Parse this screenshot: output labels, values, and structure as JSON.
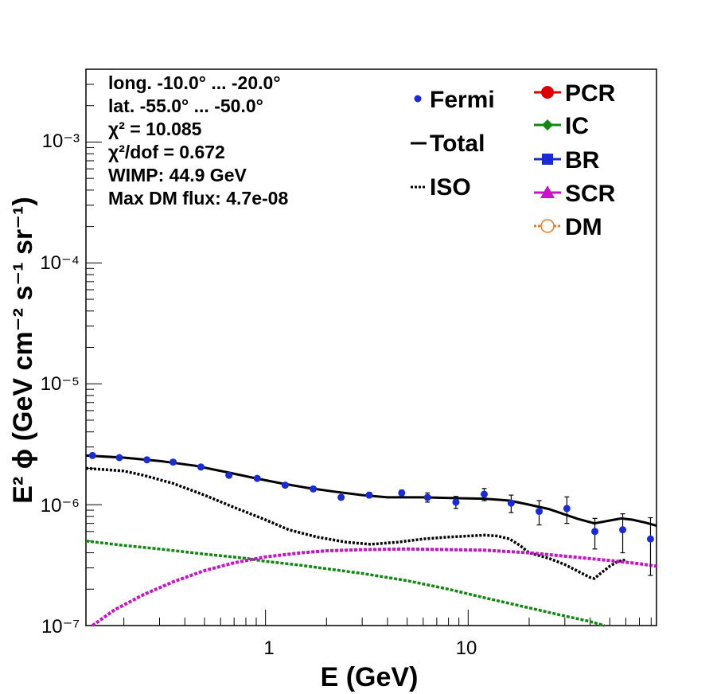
{
  "chart_data": {
    "type": "line",
    "xscale": "log",
    "yscale": "log",
    "xlim": [
      0.13,
      85
    ],
    "ylim": [
      1e-07,
      0.004
    ],
    "grid": false,
    "xlabel": "E (GeV)",
    "ylabel": "E² ϕ (GeV cm⁻² s⁻¹ sr⁻¹)",
    "x_tick_labels": [
      "1",
      "10"
    ],
    "y_tick_labels": [
      "10⁻⁷",
      "10⁻⁶",
      "10⁻⁵",
      "10⁻⁴",
      "10⁻³"
    ],
    "info": {
      "longitude": "long. -10.0° ... -20.0°",
      "latitude": "lat. -55.0° ... -50.0°",
      "chi2": "χ² = 10.085",
      "chi2_dof": "χ²/dof = 0.672",
      "wimp": "WIMP: 44.9 GeV",
      "max_dm_flux": "Max DM flux: 4.7e-08"
    },
    "legend_left": [
      "Fermi",
      "Total",
      "ISO"
    ],
    "legend_right": [
      "PCR",
      "IC",
      "BR",
      "SCR",
      "DM"
    ],
    "legend_placement": "top-right",
    "colors": {
      "Fermi": "#1a2bd6",
      "Total": "#000000",
      "ISO": "#000000",
      "PCR": "#dd0000",
      "IC": "#118811",
      "BR": "#1a2bd6",
      "SCR": "#cc11cc",
      "DM": "#ee7722"
    },
    "fermi": {
      "x": [
        0.14,
        0.19,
        0.26,
        0.35,
        0.48,
        0.66,
        0.91,
        1.25,
        1.72,
        2.36,
        3.25,
        4.7,
        6.3,
        8.7,
        12.0,
        16.3,
        22.4,
        30.7,
        42.2,
        57.9,
        79.4
      ],
      "y": [
        2.55e-06,
        2.45e-06,
        2.35e-06,
        2.25e-06,
        2.05e-06,
        1.75e-06,
        1.65e-06,
        1.45e-06,
        1.35e-06,
        1.15e-06,
        1.2e-06,
        1.25e-06,
        1.15e-06,
        1.05e-06,
        1.22e-06,
        1.03e-06,
        8.8e-07,
        9.3e-07,
        6e-07,
        6.2e-07,
        5.2e-07
      ],
      "yerr": [
        6e-08,
        5e-08,
        5e-08,
        5e-08,
        5e-08,
        5e-08,
        5e-08,
        5e-08,
        5e-08,
        5e-08,
        6e-08,
        7e-08,
        1e-07,
        1.2e-07,
        1.4e-07,
        1.7e-07,
        2e-07,
        2.3e-07,
        1.7e-07,
        2.2e-07,
        2.6e-07
      ]
    },
    "series": [
      {
        "name": "Total",
        "style": "solid",
        "x": [
          0.13,
          0.2,
          0.3,
          0.45,
          0.65,
          0.9,
          1.2,
          1.6,
          2.2,
          3.0,
          4.0,
          6.0,
          9.0,
          12.0,
          16.0,
          20.0,
          25.0,
          30.0,
          35.0,
          42.0,
          50.0,
          57.0,
          65.0,
          75.0,
          85.0
        ],
        "y": [
          2.55e-06,
          2.45e-06,
          2.3e-06,
          2.1e-06,
          1.85e-06,
          1.65e-06,
          1.5e-06,
          1.38e-06,
          1.28e-06,
          1.2e-06,
          1.15e-06,
          1.15e-06,
          1.13e-06,
          1.12e-06,
          1.08e-06,
          1e-06,
          9.2e-07,
          8.3e-07,
          7.6e-07,
          7e-07,
          7.4e-07,
          7.7e-07,
          7.5e-07,
          7.1e-07,
          6.7e-07
        ]
      },
      {
        "name": "ISO",
        "style": "dotted",
        "x": [
          0.13,
          0.2,
          0.25,
          0.35,
          0.5,
          0.7,
          1.0,
          1.3,
          1.8,
          2.5,
          3.3,
          4.5,
          6.0,
          8.0,
          10.0,
          12.0,
          14.0,
          16.0,
          18.0,
          20.0,
          25.0,
          30.0,
          35.0,
          40.0,
          42.0,
          45.0,
          50.0,
          55.0,
          60.0
        ],
        "y": [
          2e-06,
          1.9e-06,
          1.75e-06,
          1.5e-06,
          1.2e-06,
          9.5e-07,
          7.5e-07,
          6.2e-07,
          5.4e-07,
          4.9e-07,
          4.7e-07,
          4.9e-07,
          5.2e-07,
          5.4e-07,
          5.5e-07,
          5.6e-07,
          5.5e-07,
          5.2e-07,
          4.6e-07,
          4e-07,
          3.6e-07,
          3.2e-07,
          2.8e-07,
          2.5e-07,
          2.45e-07,
          2.7e-07,
          3.1e-07,
          3.4e-07,
          3.5e-07
        ]
      },
      {
        "name": "IC",
        "style": "dashed",
        "x": [
          0.13,
          0.2,
          0.3,
          0.5,
          0.8,
          1.0,
          1.5,
          2.0,
          3.0,
          5.0,
          8.0,
          12.0,
          20.0,
          30.0,
          40.0,
          47.0
        ],
        "y": [
          5e-07,
          4.6e-07,
          4.3e-07,
          3.9e-07,
          3.6e-07,
          3.4e-07,
          3.15e-07,
          2.95e-07,
          2.7e-07,
          2.35e-07,
          2e-07,
          1.7e-07,
          1.4e-07,
          1.2e-07,
          1.08e-07,
          1e-07
        ]
      },
      {
        "name": "SCR",
        "style": "dashed",
        "x": [
          0.14,
          0.18,
          0.25,
          0.35,
          0.5,
          0.7,
          1.0,
          1.5,
          2.0,
          3.0,
          5.0,
          8.0,
          12.0,
          20.0,
          30.0,
          50.0,
          70.0,
          85.0
        ],
        "y": [
          1e-07,
          1.35e-07,
          1.8e-07,
          2.3e-07,
          2.85e-07,
          3.3e-07,
          3.7e-07,
          4e-07,
          4.15e-07,
          4.25e-07,
          4.3e-07,
          4.25e-07,
          4.2e-07,
          4e-07,
          3.75e-07,
          3.45e-07,
          3.25e-07,
          3.1e-07
        ]
      }
    ]
  }
}
